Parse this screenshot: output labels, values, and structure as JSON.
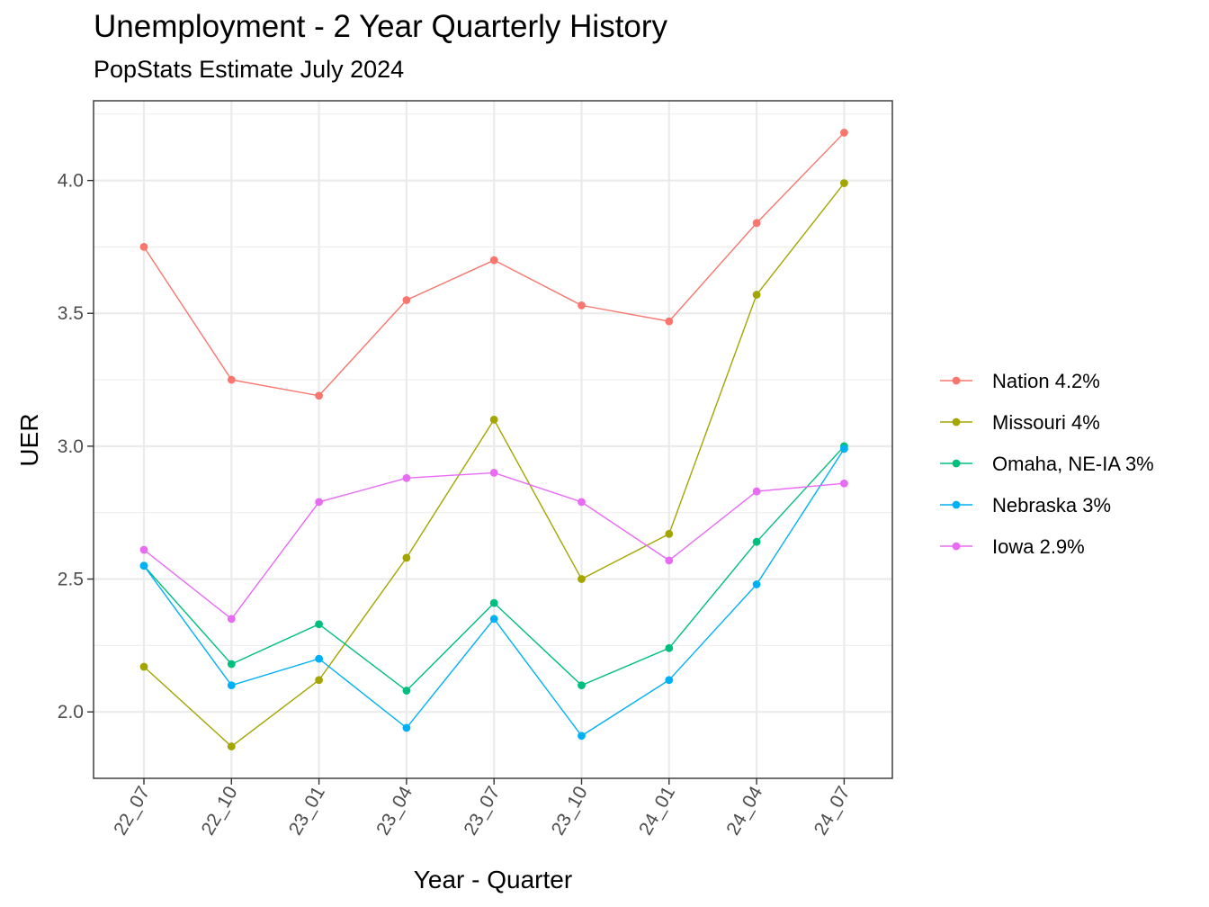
{
  "chart_data": {
    "type": "line",
    "title": "Unemployment - 2 Year Quarterly History",
    "subtitle": "PopStats Estimate July 2024",
    "xlabel": "Year - Quarter",
    "ylabel": "UER",
    "categories": [
      "22_07",
      "22_10",
      "23_01",
      "23_04",
      "23_07",
      "23_10",
      "24_01",
      "24_04",
      "24_07"
    ],
    "ylim": [
      1.75,
      4.3
    ],
    "yticks": [
      2.0,
      2.5,
      3.0,
      3.5,
      4.0
    ],
    "ytick_labels": [
      "2.0",
      "2.5",
      "3.0",
      "3.5",
      "4.0"
    ],
    "grid": true,
    "legend_position": "right",
    "series": [
      {
        "name": "Nation 4.2%",
        "color": "#F8766D",
        "values": [
          3.75,
          3.25,
          3.19,
          3.55,
          3.7,
          3.53,
          3.47,
          3.84,
          4.18
        ]
      },
      {
        "name": "Missouri 4%",
        "color": "#A3A500",
        "values": [
          2.17,
          1.87,
          2.12,
          2.58,
          3.1,
          2.5,
          2.67,
          3.57,
          3.99
        ]
      },
      {
        "name": "Omaha, NE-IA 3%",
        "color": "#00BF7D",
        "values": [
          2.55,
          2.18,
          2.33,
          2.08,
          2.41,
          2.1,
          2.24,
          2.64,
          3.0
        ]
      },
      {
        "name": "Nebraska 3%",
        "color": "#00B0F6",
        "values": [
          2.55,
          2.1,
          2.2,
          1.94,
          2.35,
          1.91,
          2.12,
          2.48,
          2.99
        ]
      },
      {
        "name": "Iowa 2.9%",
        "color": "#E76BF3",
        "values": [
          2.61,
          2.35,
          2.79,
          2.88,
          2.9,
          2.79,
          2.57,
          2.83,
          2.86
        ]
      }
    ]
  }
}
